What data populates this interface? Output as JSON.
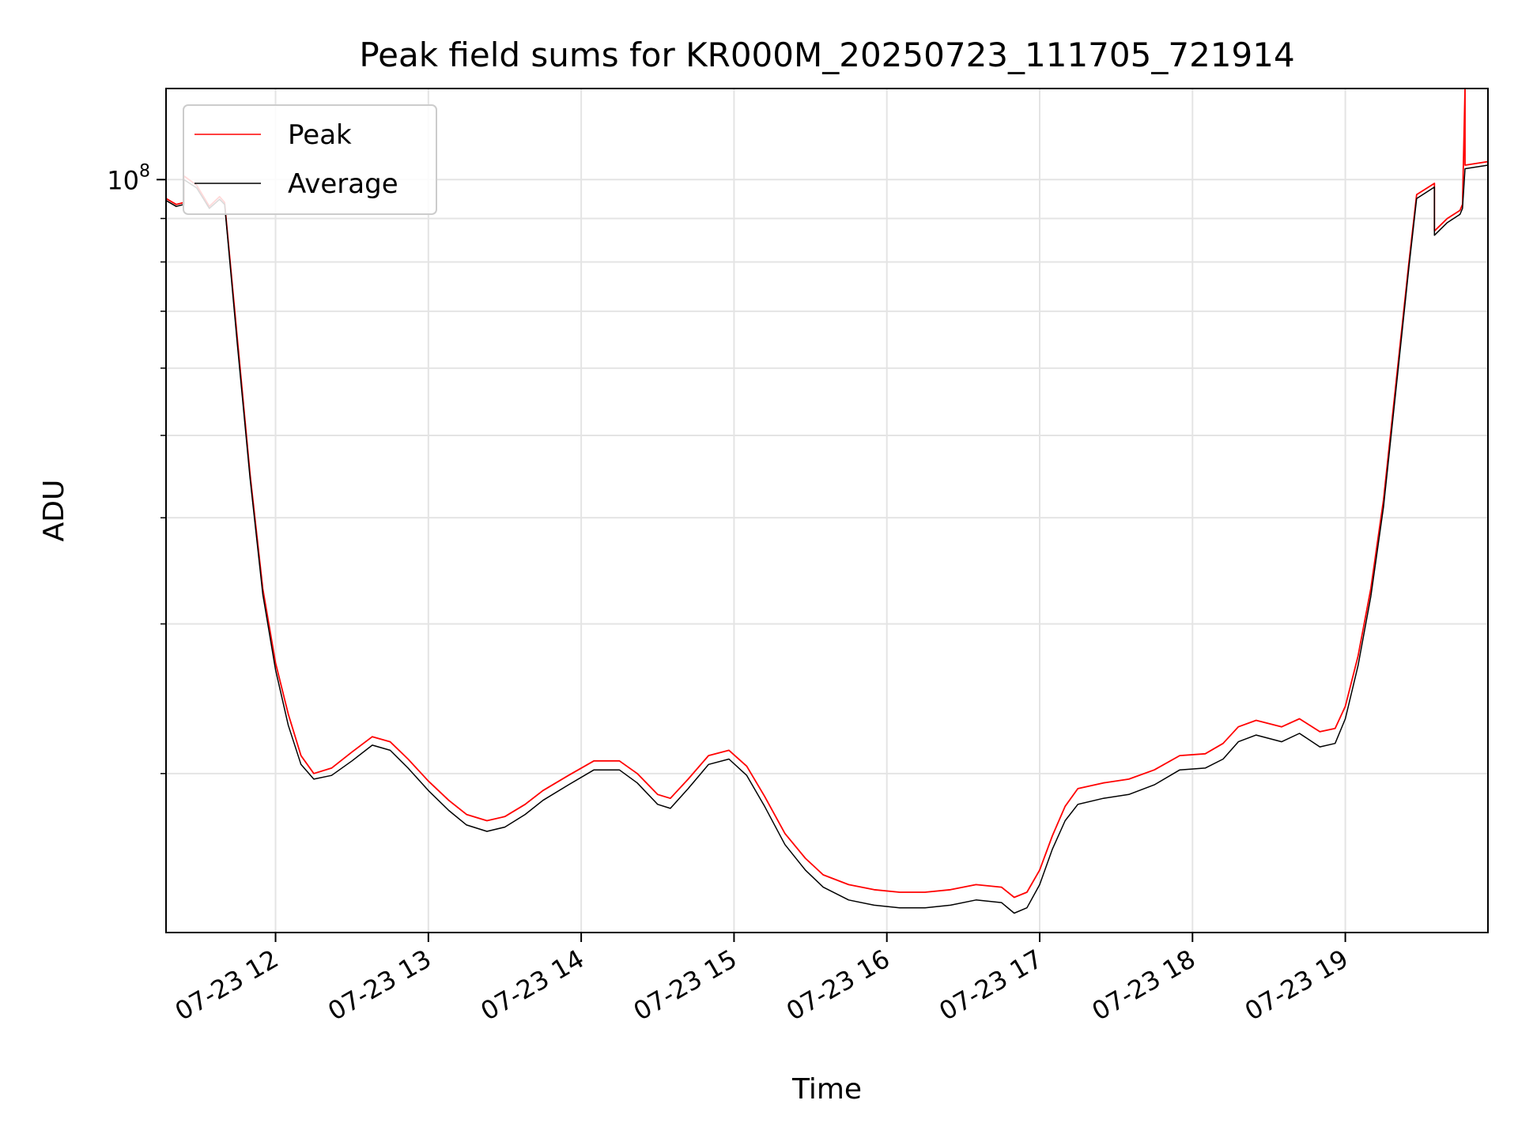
{
  "chart_data": {
    "type": "line",
    "title": "Peak field sums for KR000M_20250723_111705_721914",
    "xlabel": "Time",
    "ylabel": "ADU",
    "yscale": "log",
    "grid": true,
    "legend_placement": "top-left",
    "xlim": [
      "2025-07-23 11:17",
      "2025-07-23 19:56"
    ],
    "ylim": [
      13000000,
      128000000
    ],
    "x_ticks": [
      {
        "value": "2025-07-23 12:00",
        "label": "07-23 12"
      },
      {
        "value": "2025-07-23 13:00",
        "label": "07-23 13"
      },
      {
        "value": "2025-07-23 14:00",
        "label": "07-23 14"
      },
      {
        "value": "2025-07-23 15:00",
        "label": "07-23 15"
      },
      {
        "value": "2025-07-23 16:00",
        "label": "07-23 16"
      },
      {
        "value": "2025-07-23 17:00",
        "label": "07-23 17"
      },
      {
        "value": "2025-07-23 18:00",
        "label": "07-23 18"
      },
      {
        "value": "2025-07-23 19:00",
        "label": "07-23 19"
      }
    ],
    "y_major_ticks": [
      {
        "value": 100000000,
        "label_base": "10",
        "label_exp": "8"
      }
    ],
    "y_minor_ticks": [
      20000000,
      30000000,
      40000000,
      50000000,
      60000000,
      70000000,
      80000000,
      90000000
    ],
    "series": [
      {
        "name": "Peak",
        "color": "#ff0000",
        "points": [
          [
            "2025-07-23 11:17",
            95000000
          ],
          [
            "2025-07-23 11:21",
            93500000
          ],
          [
            "2025-07-23 11:24",
            94000000
          ],
          [
            "2025-07-23 11:24",
            101000000
          ],
          [
            "2025-07-23 11:29",
            98500000
          ],
          [
            "2025-07-23 11:34",
            93000000
          ],
          [
            "2025-07-23 11:38",
            95500000
          ],
          [
            "2025-07-23 11:40",
            94000000
          ],
          [
            "2025-07-23 11:45",
            65000000
          ],
          [
            "2025-07-23 11:50",
            45000000
          ],
          [
            "2025-07-23 11:55",
            33000000
          ],
          [
            "2025-07-23 12:00",
            27000000
          ],
          [
            "2025-07-23 12:05",
            23500000
          ],
          [
            "2025-07-23 12:10",
            21000000
          ],
          [
            "2025-07-23 12:15",
            20000000
          ],
          [
            "2025-07-23 12:22",
            20300000
          ],
          [
            "2025-07-23 12:30",
            21200000
          ],
          [
            "2025-07-23 12:38",
            22100000
          ],
          [
            "2025-07-23 12:45",
            21800000
          ],
          [
            "2025-07-23 12:52",
            20800000
          ],
          [
            "2025-07-23 13:00",
            19600000
          ],
          [
            "2025-07-23 13:08",
            18600000
          ],
          [
            "2025-07-23 13:15",
            17900000
          ],
          [
            "2025-07-23 13:23",
            17600000
          ],
          [
            "2025-07-23 13:30",
            17800000
          ],
          [
            "2025-07-23 13:38",
            18400000
          ],
          [
            "2025-07-23 13:45",
            19100000
          ],
          [
            "2025-07-23 13:55",
            19900000
          ],
          [
            "2025-07-23 14:05",
            20700000
          ],
          [
            "2025-07-23 14:15",
            20700000
          ],
          [
            "2025-07-23 14:22",
            20000000
          ],
          [
            "2025-07-23 14:30",
            18900000
          ],
          [
            "2025-07-23 14:35",
            18700000
          ],
          [
            "2025-07-23 14:42",
            19700000
          ],
          [
            "2025-07-23 14:50",
            21000000
          ],
          [
            "2025-07-23 14:58",
            21300000
          ],
          [
            "2025-07-23 15:05",
            20400000
          ],
          [
            "2025-07-23 15:12",
            18800000
          ],
          [
            "2025-07-23 15:20",
            17000000
          ],
          [
            "2025-07-23 15:28",
            15900000
          ],
          [
            "2025-07-23 15:35",
            15200000
          ],
          [
            "2025-07-23 15:45",
            14800000
          ],
          [
            "2025-07-23 15:55",
            14600000
          ],
          [
            "2025-07-23 16:05",
            14500000
          ],
          [
            "2025-07-23 16:15",
            14500000
          ],
          [
            "2025-07-23 16:25",
            14600000
          ],
          [
            "2025-07-23 16:35",
            14800000
          ],
          [
            "2025-07-23 16:45",
            14700000
          ],
          [
            "2025-07-23 16:50",
            14300000
          ],
          [
            "2025-07-23 16:55",
            14500000
          ],
          [
            "2025-07-23 17:00",
            15400000
          ],
          [
            "2025-07-23 17:05",
            16900000
          ],
          [
            "2025-07-23 17:10",
            18300000
          ],
          [
            "2025-07-23 17:15",
            19200000
          ],
          [
            "2025-07-23 17:25",
            19500000
          ],
          [
            "2025-07-23 17:35",
            19700000
          ],
          [
            "2025-07-23 17:45",
            20200000
          ],
          [
            "2025-07-23 17:55",
            21000000
          ],
          [
            "2025-07-23 18:05",
            21100000
          ],
          [
            "2025-07-23 18:12",
            21700000
          ],
          [
            "2025-07-23 18:18",
            22700000
          ],
          [
            "2025-07-23 18:25",
            23100000
          ],
          [
            "2025-07-23 18:35",
            22700000
          ],
          [
            "2025-07-23 18:42",
            23200000
          ],
          [
            "2025-07-23 18:50",
            22400000
          ],
          [
            "2025-07-23 18:56",
            22600000
          ],
          [
            "2025-07-23 19:00",
            24000000
          ],
          [
            "2025-07-23 19:05",
            27500000
          ],
          [
            "2025-07-23 19:10",
            33000000
          ],
          [
            "2025-07-23 19:15",
            42000000
          ],
          [
            "2025-07-23 19:20",
            58000000
          ],
          [
            "2025-07-23 19:25",
            80000000
          ],
          [
            "2025-07-23 19:28",
            96000000
          ],
          [
            "2025-07-23 19:35",
            99000000
          ],
          [
            "2025-07-23 19:35",
            87000000
          ],
          [
            "2025-07-23 19:40",
            90000000
          ],
          [
            "2025-07-23 19:45",
            92000000
          ],
          [
            "2025-07-23 19:46",
            93500000
          ],
          [
            "2025-07-23 19:47",
            128000000
          ],
          [
            "2025-07-23 19:47",
            104000000
          ],
          [
            "2025-07-23 19:56",
            105000000
          ]
        ]
      },
      {
        "name": "Average",
        "color": "#000000",
        "points": [
          [
            "2025-07-23 11:17",
            94500000
          ],
          [
            "2025-07-23 11:21",
            93000000
          ],
          [
            "2025-07-23 11:24",
            93500000
          ],
          [
            "2025-07-23 11:24",
            100000000
          ],
          [
            "2025-07-23 11:29",
            97800000
          ],
          [
            "2025-07-23 11:34",
            92500000
          ],
          [
            "2025-07-23 11:38",
            94800000
          ],
          [
            "2025-07-23 11:40",
            93500000
          ],
          [
            "2025-07-23 11:45",
            64000000
          ],
          [
            "2025-07-23 11:50",
            44500000
          ],
          [
            "2025-07-23 11:55",
            32500000
          ],
          [
            "2025-07-23 12:00",
            26500000
          ],
          [
            "2025-07-23 12:05",
            22800000
          ],
          [
            "2025-07-23 12:10",
            20500000
          ],
          [
            "2025-07-23 12:15",
            19700000
          ],
          [
            "2025-07-23 12:22",
            19900000
          ],
          [
            "2025-07-23 12:30",
            20700000
          ],
          [
            "2025-07-23 12:38",
            21600000
          ],
          [
            "2025-07-23 12:45",
            21300000
          ],
          [
            "2025-07-23 12:52",
            20300000
          ],
          [
            "2025-07-23 13:00",
            19100000
          ],
          [
            "2025-07-23 13:08",
            18100000
          ],
          [
            "2025-07-23 13:15",
            17400000
          ],
          [
            "2025-07-23 13:23",
            17100000
          ],
          [
            "2025-07-23 13:30",
            17300000
          ],
          [
            "2025-07-23 13:38",
            17900000
          ],
          [
            "2025-07-23 13:45",
            18600000
          ],
          [
            "2025-07-23 13:55",
            19400000
          ],
          [
            "2025-07-23 14:05",
            20200000
          ],
          [
            "2025-07-23 14:15",
            20200000
          ],
          [
            "2025-07-23 14:22",
            19500000
          ],
          [
            "2025-07-23 14:30",
            18400000
          ],
          [
            "2025-07-23 14:35",
            18200000
          ],
          [
            "2025-07-23 14:42",
            19200000
          ],
          [
            "2025-07-23 14:50",
            20500000
          ],
          [
            "2025-07-23 14:58",
            20800000
          ],
          [
            "2025-07-23 15:05",
            19900000
          ],
          [
            "2025-07-23 15:12",
            18300000
          ],
          [
            "2025-07-23 15:20",
            16500000
          ],
          [
            "2025-07-23 15:28",
            15400000
          ],
          [
            "2025-07-23 15:35",
            14700000
          ],
          [
            "2025-07-23 15:45",
            14200000
          ],
          [
            "2025-07-23 15:55",
            14000000
          ],
          [
            "2025-07-23 16:05",
            13900000
          ],
          [
            "2025-07-23 16:15",
            13900000
          ],
          [
            "2025-07-23 16:25",
            14000000
          ],
          [
            "2025-07-23 16:35",
            14200000
          ],
          [
            "2025-07-23 16:45",
            14100000
          ],
          [
            "2025-07-23 16:50",
            13700000
          ],
          [
            "2025-07-23 16:55",
            13900000
          ],
          [
            "2025-07-23 17:00",
            14800000
          ],
          [
            "2025-07-23 17:05",
            16300000
          ],
          [
            "2025-07-23 17:10",
            17600000
          ],
          [
            "2025-07-23 17:15",
            18400000
          ],
          [
            "2025-07-23 17:25",
            18700000
          ],
          [
            "2025-07-23 17:35",
            18900000
          ],
          [
            "2025-07-23 17:45",
            19400000
          ],
          [
            "2025-07-23 17:55",
            20200000
          ],
          [
            "2025-07-23 18:05",
            20300000
          ],
          [
            "2025-07-23 18:12",
            20800000
          ],
          [
            "2025-07-23 18:18",
            21800000
          ],
          [
            "2025-07-23 18:25",
            22200000
          ],
          [
            "2025-07-23 18:35",
            21800000
          ],
          [
            "2025-07-23 18:42",
            22300000
          ],
          [
            "2025-07-23 18:50",
            21500000
          ],
          [
            "2025-07-23 18:56",
            21700000
          ],
          [
            "2025-07-23 19:00",
            23200000
          ],
          [
            "2025-07-23 19:05",
            26800000
          ],
          [
            "2025-07-23 19:10",
            32300000
          ],
          [
            "2025-07-23 19:15",
            41200000
          ],
          [
            "2025-07-23 19:20",
            57000000
          ],
          [
            "2025-07-23 19:25",
            79000000
          ],
          [
            "2025-07-23 19:28",
            95000000
          ],
          [
            "2025-07-23 19:35",
            98000000
          ],
          [
            "2025-07-23 19:35",
            86000000
          ],
          [
            "2025-07-23 19:40",
            89000000
          ],
          [
            "2025-07-23 19:45",
            91000000
          ],
          [
            "2025-07-23 19:46",
            92500000
          ],
          [
            "2025-07-23 19:47",
            103000000
          ],
          [
            "2025-07-23 19:56",
            104000000
          ]
        ]
      }
    ]
  }
}
